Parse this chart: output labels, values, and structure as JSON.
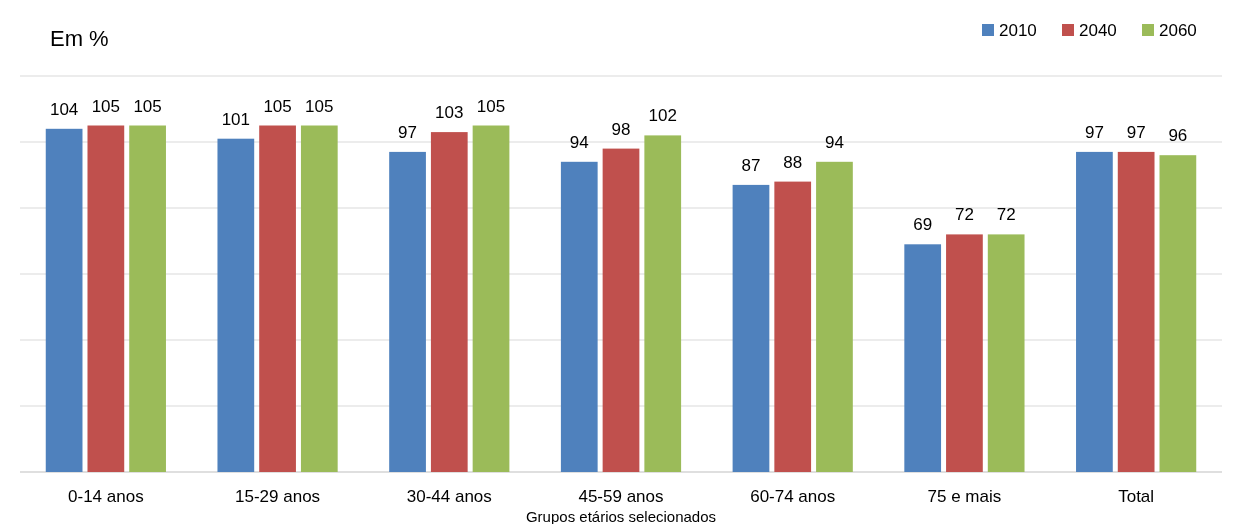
{
  "chart_data": {
    "type": "bar",
    "ylabel": "Em %",
    "xlabel": "Grupos etários selecionados",
    "categories": [
      "0-14 anos",
      "15-29 anos",
      "30-44 anos",
      "45-59 anos",
      "60-74 anos",
      "75 e mais",
      "Total"
    ],
    "series": [
      {
        "name": "2010",
        "color": "#4f81bd",
        "values": [
          104,
          101,
          97,
          94,
          87,
          69,
          97
        ]
      },
      {
        "name": "2040",
        "color": "#c0504d",
        "values": [
          105,
          105,
          103,
          98,
          88,
          72,
          97
        ]
      },
      {
        "name": "2060",
        "color": "#9bbb59",
        "values": [
          105,
          105,
          105,
          102,
          94,
          72,
          96
        ]
      }
    ],
    "ylim": [
      0,
      120
    ],
    "yticks": [
      {
        "value": 0,
        "label": null
      },
      {
        "value": 20,
        "label": null
      },
      {
        "value": 40,
        "label": null
      },
      {
        "value": 60,
        "label": null
      },
      {
        "value": 80,
        "label": null
      },
      {
        "value": 100,
        "label": null
      },
      {
        "value": 120,
        "label": null
      }
    ],
    "tick_labels": "x",
    "grid": "y",
    "legend": "top right",
    "data_labels": true
  }
}
